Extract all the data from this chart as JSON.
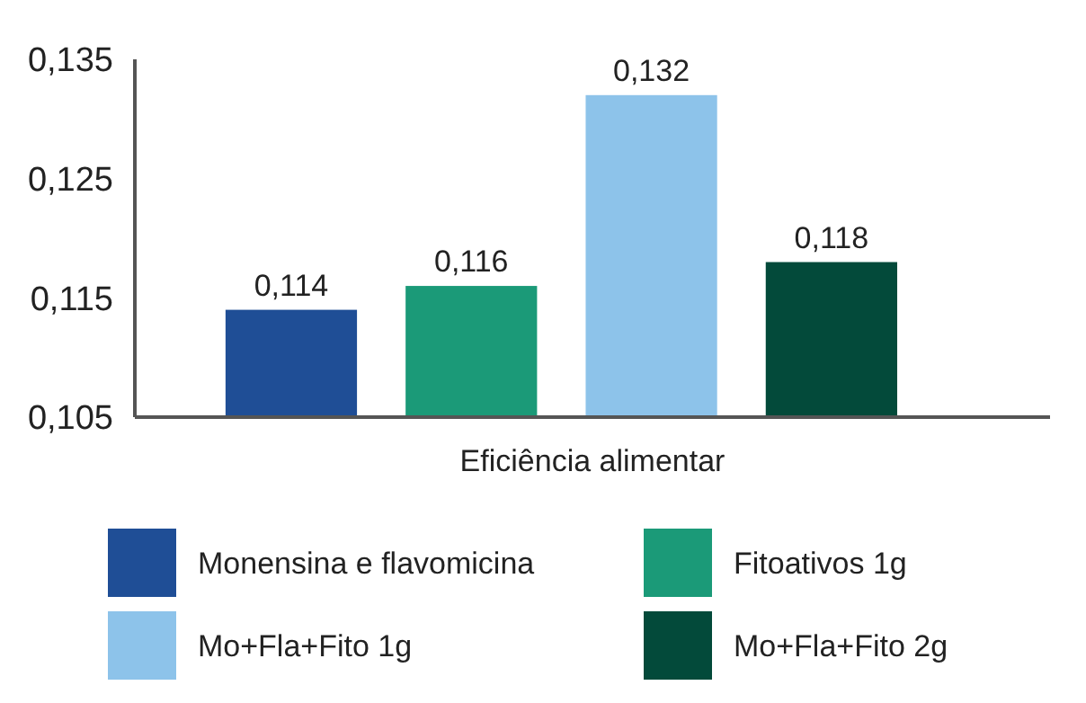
{
  "chart_data": {
    "type": "bar",
    "categories": [
      "Eficiência alimentar"
    ],
    "series": [
      {
        "name": "Monensina e flavomicina",
        "color": "#1f4e96",
        "values": [
          0.114
        ],
        "value_labels": [
          "0,114"
        ]
      },
      {
        "name": "Fitoativos 1g",
        "color": "#1b9a78",
        "values": [
          0.116
        ],
        "value_labels": [
          "0,116"
        ]
      },
      {
        "name": "Mo+Fla+Fito 1g",
        "color": "#8dc3ea",
        "values": [
          0.132
        ],
        "value_labels": [
          "0,132"
        ]
      },
      {
        "name": "Mo+Fla+Fito 2g",
        "color": "#034a3a",
        "values": [
          0.118
        ],
        "value_labels": [
          "0,118"
        ]
      }
    ],
    "ylim": [
      0.105,
      0.135
    ],
    "yticks": [
      {
        "value": 0.105,
        "label": "0,105"
      },
      {
        "value": 0.115,
        "label": "0,115"
      },
      {
        "value": 0.125,
        "label": "0,125"
      },
      {
        "value": 0.135,
        "label": "0,135"
      }
    ],
    "grid": false,
    "legend": "bottom"
  }
}
